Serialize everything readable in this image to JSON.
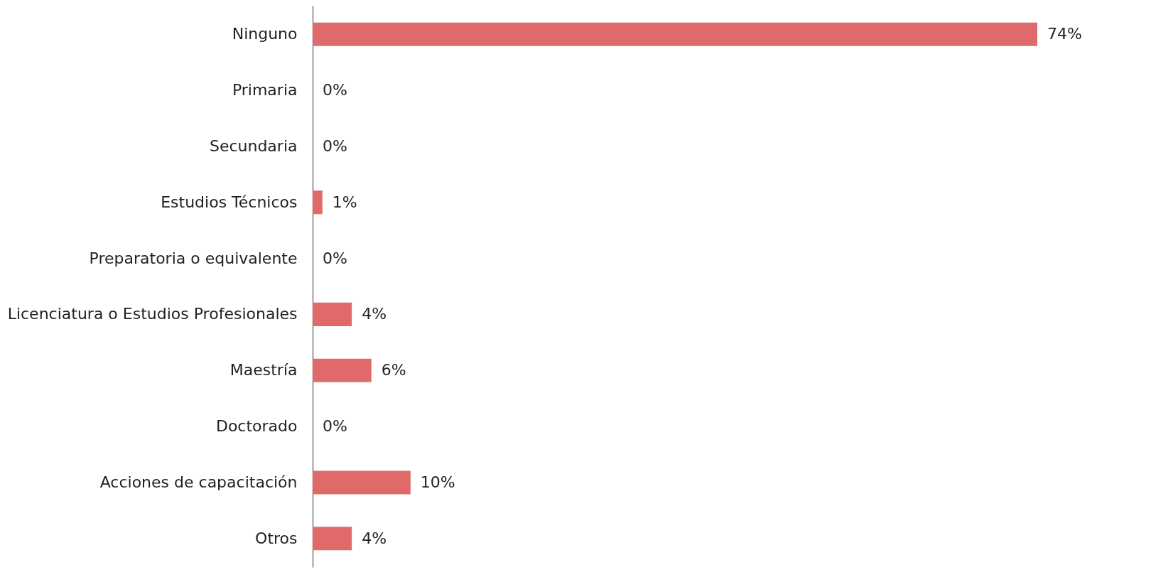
{
  "chart_data": {
    "type": "bar",
    "orientation": "horizontal",
    "categories": [
      "Ninguno",
      "Primaria",
      "Secundaria",
      "Estudios Técnicos",
      "Preparatoria o equivalente",
      "Licenciatura o Estudios Profesionales",
      "Maestría",
      "Doctorado",
      "Acciones de capacitación",
      "Otros"
    ],
    "values": [
      74,
      0,
      0,
      1,
      0,
      4,
      6,
      0,
      10,
      4
    ],
    "value_labels": [
      "74%",
      "0%",
      "0%",
      "1%",
      "0%",
      "4%",
      "6%",
      "0%",
      "10%",
      "4%"
    ],
    "color": "#e06a6a",
    "grid": false
  }
}
